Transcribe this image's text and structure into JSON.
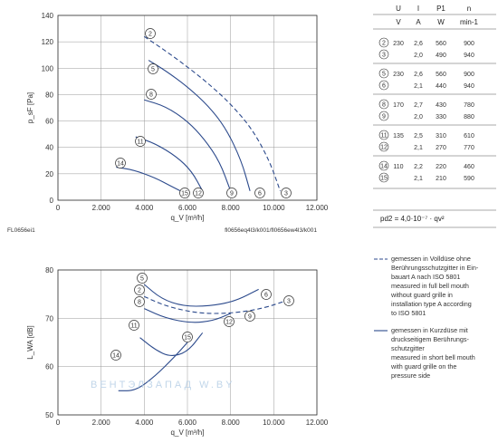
{
  "chart_data": [
    {
      "type": "line",
      "ylabel": "p_sF [Pa]",
      "xlabel": "q_V [m³/h]",
      "xlim": [
        0,
        12000
      ],
      "ylim": [
        0,
        140
      ],
      "xticks": [
        "0",
        "2.000",
        "4.000",
        "6.000",
        "8.000",
        "10.000",
        "12.000"
      ],
      "yticks": [
        "0",
        "20",
        "40",
        "60",
        "80",
        "100",
        "120",
        "140"
      ],
      "grid": true,
      "footer_left": "FL0656ei1",
      "footer_right": "fl0656eq4l3/k001/fl0656ew4l3/k001",
      "series": [
        {
          "name": "2",
          "style": "dashed",
          "x": [
            4000,
            5000,
            6000,
            7000,
            8000,
            9000,
            9800,
            10300
          ],
          "y": [
            124,
            113,
            101,
            88,
            73,
            54,
            30,
            7
          ]
        },
        {
          "name": "5",
          "style": "solid",
          "x": [
            4200,
            5000,
            6000,
            7000,
            7800,
            8500,
            8900
          ],
          "y": [
            106,
            98,
            86,
            71,
            54,
            30,
            7
          ]
        },
        {
          "name": "8",
          "style": "solid",
          "x": [
            4000,
            5000,
            6000,
            6800,
            7500,
            8000
          ],
          "y": [
            76,
            71,
            60,
            46,
            29,
            7
          ]
        },
        {
          "name": "11",
          "style": "solid",
          "x": [
            3600,
            4500,
            5500,
            6200,
            6700
          ],
          "y": [
            48,
            43,
            33,
            22,
            7
          ]
        },
        {
          "name": "14",
          "style": "solid",
          "x": [
            2700,
            3500,
            4500,
            5200,
            5800
          ],
          "y": [
            25,
            23,
            17,
            11,
            6
          ]
        }
      ],
      "markers": [
        "2",
        "3",
        "5",
        "6",
        "8",
        "9",
        "11",
        "12",
        "14",
        "15"
      ]
    },
    {
      "type": "line",
      "ylabel": "L_WA [dB]",
      "xlabel": "q_V [m³/h]",
      "xlim": [
        0,
        12000
      ],
      "ylim": [
        50,
        80
      ],
      "xticks": [
        "0",
        "2.000",
        "4.000",
        "6.000",
        "8.000",
        "10.000",
        "12.000"
      ],
      "yticks": [
        "50",
        "60",
        "70",
        "80"
      ],
      "grid": true,
      "series": [
        {
          "name": "2",
          "style": "dashed",
          "x": [
            4000,
            5000,
            6500,
            8000,
            9500,
            10800
          ],
          "y": [
            74.5,
            72.5,
            71,
            71,
            72,
            74
          ]
        },
        {
          "name": "5",
          "style": "solid",
          "x": [
            4000,
            4800,
            5800,
            7000,
            8200,
            9300
          ],
          "y": [
            77,
            74,
            72.5,
            72.5,
            73.5,
            76
          ]
        },
        {
          "name": "8",
          "style": "solid",
          "x": [
            4000,
            5000,
            6200,
            7200,
            8000
          ],
          "y": [
            72,
            70,
            69,
            69.5,
            71
          ]
        },
        {
          "name": "11",
          "style": "solid",
          "x": [
            3800,
            4500,
            5200,
            6000,
            6700
          ],
          "y": [
            66,
            63.5,
            62,
            63,
            67
          ]
        },
        {
          "name": "14",
          "style": "solid",
          "x": [
            2800,
            3600,
            4500,
            5400,
            6000
          ],
          "y": [
            55,
            55,
            58,
            62,
            65
          ]
        }
      ],
      "markers": [
        "2",
        "3",
        "5",
        "6",
        "8",
        "9",
        "11",
        "12",
        "14",
        "15"
      ]
    }
  ],
  "table": {
    "headers": [
      "U",
      "I",
      "P1",
      "n"
    ],
    "units": [
      "V",
      "A",
      "W",
      "min-1"
    ],
    "groups": [
      {
        "rows": [
          {
            "id": "2",
            "U": "230",
            "I": "2,6",
            "P1": "560",
            "n": "900"
          },
          {
            "id": "3",
            "U": "",
            "I": "2,0",
            "P1": "490",
            "n": "940"
          }
        ]
      },
      {
        "rows": [
          {
            "id": "5",
            "U": "230",
            "I": "2,6",
            "P1": "560",
            "n": "900"
          },
          {
            "id": "6",
            "U": "",
            "I": "2,1",
            "P1": "440",
            "n": "940"
          }
        ]
      },
      {
        "rows": [
          {
            "id": "8",
            "U": "170",
            "I": "2,7",
            "P1": "430",
            "n": "780"
          },
          {
            "id": "9",
            "U": "",
            "I": "2,0",
            "P1": "330",
            "n": "880"
          }
        ]
      },
      {
        "rows": [
          {
            "id": "11",
            "U": "135",
            "I": "2,5",
            "P1": "310",
            "n": "610"
          },
          {
            "id": "12",
            "U": "",
            "I": "2,1",
            "P1": "270",
            "n": "770"
          }
        ]
      },
      {
        "rows": [
          {
            "id": "14",
            "U": "110",
            "I": "2,2",
            "P1": "220",
            "n": "460"
          },
          {
            "id": "15",
            "U": "",
            "I": "2,1",
            "P1": "210",
            "n": "590"
          }
        ]
      }
    ],
    "formula": "pd2 = 4,0·10⁻⁷ · qv²"
  },
  "legend": {
    "dashed": [
      "gemessen in Volldüse ohne",
      "Berührungsschutzgitter in Ein-",
      "bauart A nach ISO 5801",
      "measured in full bell mouth",
      "without guard grille in",
      "installation type A according",
      "to ISO 5801"
    ],
    "solid": [
      "gemessen in Kurzdüse mit",
      "druckseitigem Berührungs-",
      "schutzgitter",
      "measured in short bell mouth",
      "with guard grille on the",
      "pressure side"
    ]
  },
  "watermark": "ВЕНТЭЛЗАПАД    W.BY",
  "colors": {
    "line": "#2c4a8c",
    "grid": "#999999",
    "axis": "#333333"
  }
}
